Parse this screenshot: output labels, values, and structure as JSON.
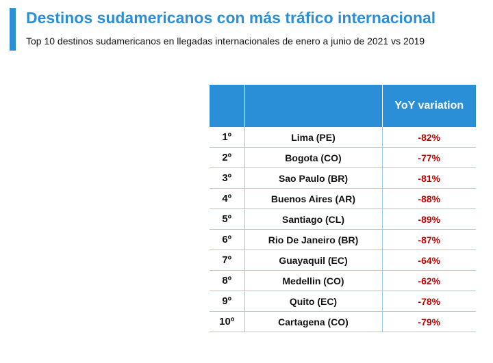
{
  "header": {
    "title": "Destinos sudamericanos con más tráfico internacional",
    "subtitle": "Top 10 destinos sudamericanos en llegadas internacionales de enero a junio de 2021 vs 2019"
  },
  "colors": {
    "accent": "#2a8fd6",
    "negative": "#c00000"
  },
  "chart_data": {
    "type": "table",
    "title": "Destinos sudamericanos con más tráfico internacional",
    "subtitle": "Top 10 destinos sudamericanos en llegadas internacionales de enero a junio de 2021 vs 2019",
    "columns": [
      "",
      "",
      "YoY variation"
    ],
    "rows": [
      {
        "rank": "1º",
        "destination": "Lima (PE)",
        "yoy": "-82%",
        "value": -82
      },
      {
        "rank": "2º",
        "destination": "Bogota (CO)",
        "yoy": "-77%",
        "value": -77
      },
      {
        "rank": "3º",
        "destination": "Sao Paulo (BR)",
        "yoy": "-81%",
        "value": -81
      },
      {
        "rank": "4º",
        "destination": "Buenos Aires (AR)",
        "yoy": "-88%",
        "value": -88
      },
      {
        "rank": "5º",
        "destination": "Santiago (CL)",
        "yoy": "-89%",
        "value": -89
      },
      {
        "rank": "6º",
        "destination": "Rio De Janeiro (BR)",
        "yoy": "-87%",
        "value": -87
      },
      {
        "rank": "7º",
        "destination": "Guayaquil (EC)",
        "yoy": "-64%",
        "value": -64
      },
      {
        "rank": "8º",
        "destination": "Medellin (CO)",
        "yoy": "-62%",
        "value": -62
      },
      {
        "rank": "9º",
        "destination": "Quito (EC)",
        "yoy": "-78%",
        "value": -78
      },
      {
        "rank": "10º",
        "destination": "Cartagena (CO)",
        "yoy": "-79%",
        "value": -79
      }
    ]
  }
}
